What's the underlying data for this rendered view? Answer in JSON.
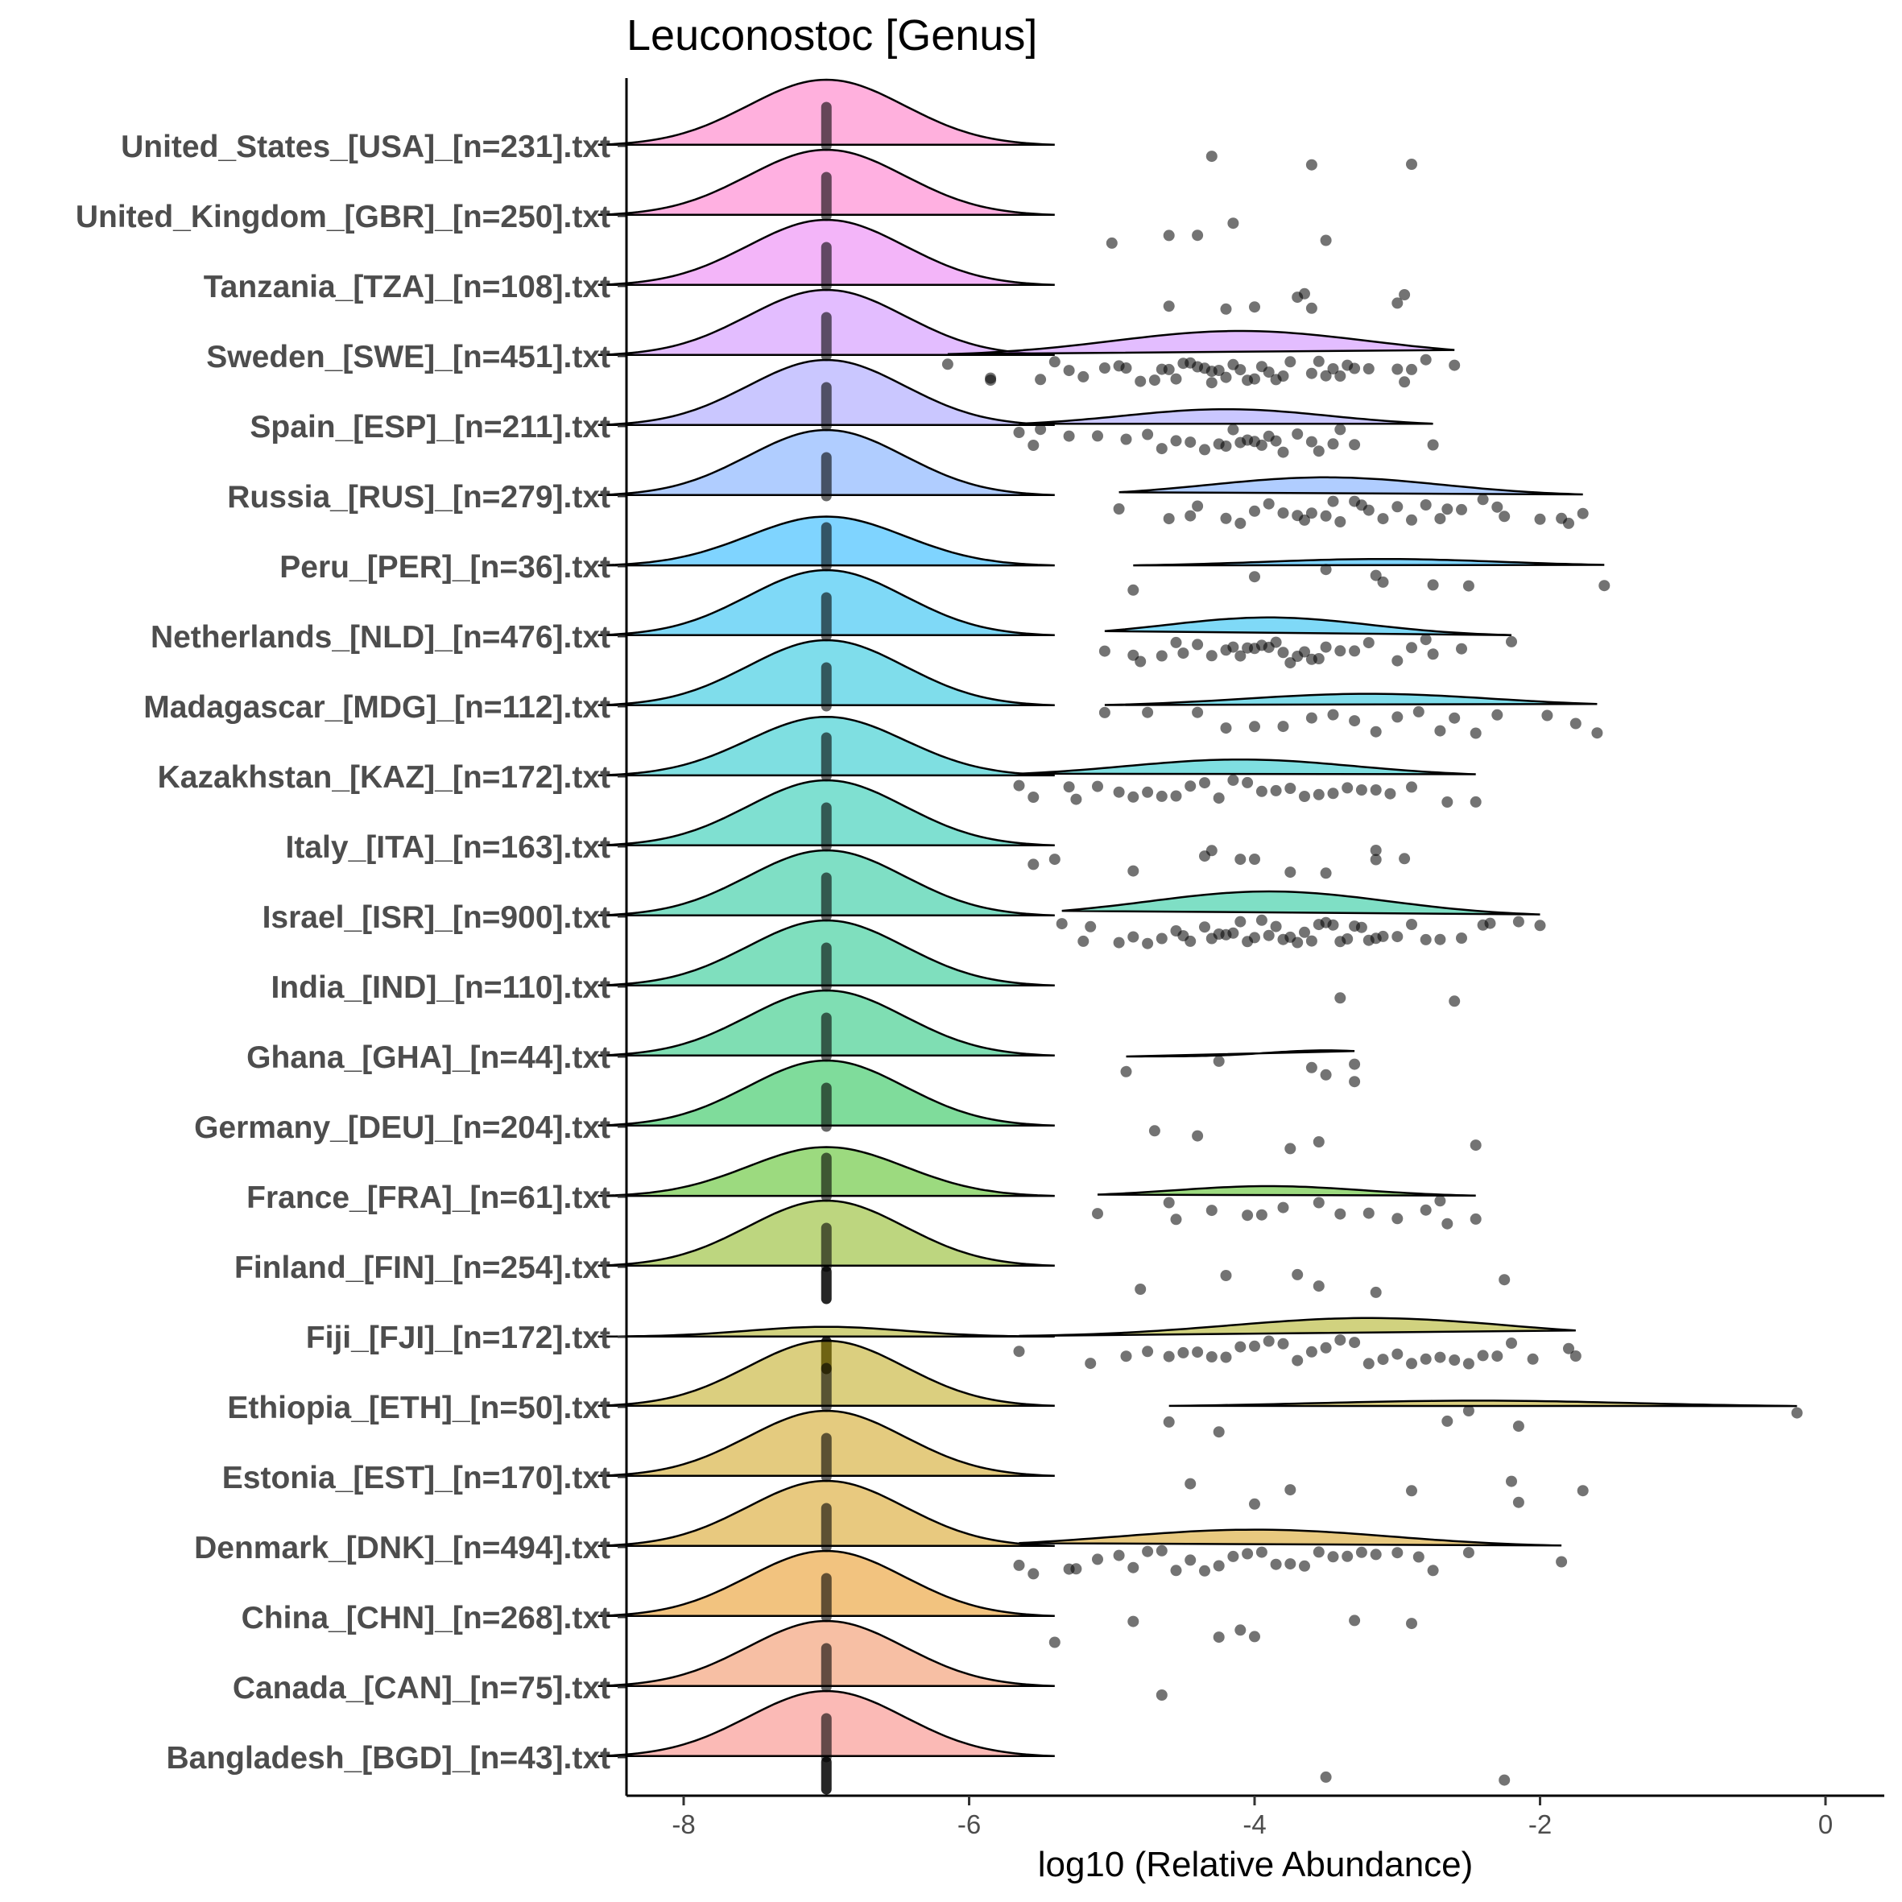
{
  "chart_data": {
    "type": "ridgeline-jitter",
    "title": "Leuconostoc [Genus]",
    "xlabel": "log10 (Relative Abundance)",
    "ylabel": "",
    "xlim": [
      -8.4,
      0.4
    ],
    "xticks": [
      -8,
      -6,
      -4,
      -2,
      0
    ],
    "grid": false,
    "legend": "none",
    "zero_value": -7,
    "categories": [
      {
        "label": "United_States_[USA]_[n=231].txt",
        "color": "#F8766D",
        "peak": -7,
        "zero_peak": 1.0,
        "zero_strip": [
          1,
          0
        ],
        "points": [
          -3.6,
          -4.3,
          -2.9
        ]
      },
      {
        "label": "United_Kingdom_[GBR]_[n=250].txt",
        "color": "#F8766D",
        "peak": -7,
        "zero_peak": 1.0,
        "zero_strip": [
          1,
          0
        ],
        "points": [
          -5.0,
          -4.6,
          -4.4,
          -4.15,
          -3.5
        ]
      },
      {
        "label": "Tanzania_[TZA]_[n=108].txt",
        "color": "#F8766D",
        "peak": -7,
        "zero_peak": 1.0,
        "zero_strip": [
          1,
          0
        ],
        "points": [
          -4.6,
          -4.2,
          -4.0,
          -3.7,
          -3.6,
          -3.65,
          -3.0,
          -2.95
        ]
      },
      {
        "label": "Sweden_[SWE]_[n=451].txt",
        "color": "#F8766D",
        "peak": -4.1,
        "zero_peak": 1.0,
        "zero_strip": [
          1,
          0
        ],
        "points": [
          -6.15,
          -5.85,
          -5.85,
          -5.5,
          -5.4,
          -5.3,
          -5.2,
          -5.05,
          -4.95,
          -4.9,
          -4.8,
          -4.7,
          -4.65,
          -4.6,
          -4.55,
          -4.5,
          -4.45,
          -4.4,
          -4.35,
          -4.3,
          -4.3,
          -4.25,
          -4.2,
          -4.15,
          -4.1,
          -4.05,
          -4.0,
          -3.95,
          -3.9,
          -3.85,
          -3.8,
          -3.75,
          -3.6,
          -3.55,
          -3.5,
          -3.45,
          -3.4,
          -3.35,
          -3.3,
          -3.2,
          -3.0,
          -2.95,
          -2.9,
          -2.8,
          -2.6
        ]
      },
      {
        "label": "Spain_[ESP]_[n=211].txt",
        "color": "#F8766D",
        "peak": -4.2,
        "zero_peak": 1.0,
        "zero_strip": [
          1,
          0
        ],
        "points": [
          -5.65,
          -5.55,
          -5.5,
          -5.3,
          -5.1,
          -4.9,
          -4.75,
          -4.65,
          -4.55,
          -4.45,
          -4.35,
          -4.25,
          -4.2,
          -4.15,
          -4.1,
          -4.05,
          -4.0,
          -3.95,
          -3.9,
          -3.85,
          -3.8,
          -3.7,
          -3.6,
          -3.55,
          -3.45,
          -3.4,
          -3.3,
          -2.75
        ]
      },
      {
        "label": "Russia_[RUS]_[n=279].txt",
        "color": "#F8766D",
        "peak": -3.5,
        "zero_peak": 1.0,
        "zero_strip": [
          1,
          0
        ],
        "points": [
          -4.95,
          -4.6,
          -4.45,
          -4.4,
          -4.2,
          -4.1,
          -4.0,
          -3.9,
          -3.8,
          -3.7,
          -3.65,
          -3.6,
          -3.5,
          -3.45,
          -3.4,
          -3.3,
          -3.25,
          -3.2,
          -3.1,
          -3.0,
          -2.9,
          -2.8,
          -2.7,
          -2.65,
          -2.55,
          -2.4,
          -2.3,
          -2.25,
          -2.0,
          -1.85,
          -1.8,
          -1.7
        ]
      },
      {
        "label": "Peru_[PER]_[n=36].txt",
        "color": "#F8766D",
        "peak": -3.1,
        "zero_peak": 0.75,
        "zero_strip": [
          1,
          0
        ],
        "points": [
          -4.85,
          -4.0,
          -3.5,
          -3.15,
          -3.1,
          -2.75,
          -2.5,
          -1.55
        ]
      },
      {
        "label": "Netherlands_[NLD]_[n=476].txt",
        "color": "#F8766D",
        "peak": -3.9,
        "zero_peak": 1.0,
        "zero_strip": [
          1,
          0
        ],
        "points": [
          -5.05,
          -4.85,
          -4.8,
          -4.65,
          -4.55,
          -4.5,
          -4.4,
          -4.3,
          -4.2,
          -4.15,
          -4.1,
          -4.05,
          -4.0,
          -3.95,
          -3.9,
          -3.85,
          -3.8,
          -3.75,
          -3.7,
          -3.65,
          -3.6,
          -3.55,
          -3.5,
          -3.4,
          -3.3,
          -3.2,
          -3.0,
          -2.9,
          -2.8,
          -2.75,
          -2.55,
          -2.2
        ]
      },
      {
        "label": "Madagascar_[MDG]_[n=112].txt",
        "color": "#F8766D",
        "peak": -3.2,
        "zero_peak": 1.0,
        "zero_strip": [
          1,
          0
        ],
        "points": [
          -5.05,
          -4.75,
          -4.4,
          -4.2,
          -4.0,
          -3.8,
          -3.6,
          -3.45,
          -3.3,
          -3.15,
          -3.0,
          -2.85,
          -2.7,
          -2.6,
          -2.45,
          -2.3,
          -1.95,
          -1.75,
          -1.6
        ]
      },
      {
        "label": "Kazakhstan_[KAZ]_[n=172].txt",
        "color": "#F8766D",
        "peak": -4.1,
        "zero_peak": 0.9,
        "zero_strip": [
          1,
          0
        ],
        "points": [
          -5.65,
          -5.55,
          -5.3,
          -5.25,
          -5.1,
          -4.95,
          -4.85,
          -4.75,
          -4.65,
          -4.55,
          -4.45,
          -4.35,
          -4.25,
          -4.15,
          -4.05,
          -3.95,
          -3.85,
          -3.75,
          -3.65,
          -3.55,
          -3.45,
          -3.35,
          -3.25,
          -3.15,
          -3.05,
          -2.9,
          -2.65,
          -2.45
        ]
      },
      {
        "label": "Italy_[ITA]_[n=163].txt",
        "color": "#F8766D",
        "peak": -7,
        "zero_peak": 1.0,
        "zero_strip": [
          1,
          0
        ],
        "points": [
          -5.55,
          -5.4,
          -4.85,
          -4.35,
          -4.3,
          -4.1,
          -4.0,
          -3.75,
          -3.5,
          -3.15,
          -3.15,
          -2.95
        ]
      },
      {
        "label": "Israel_[ISR]_[n=900].txt",
        "color": "#F8766D",
        "peak": -3.9,
        "zero_peak": 1.0,
        "zero_strip": [
          1,
          0
        ],
        "points": [
          -5.35,
          -5.2,
          -5.15,
          -4.95,
          -4.85,
          -4.75,
          -4.65,
          -4.55,
          -4.5,
          -4.45,
          -4.35,
          -4.3,
          -4.25,
          -4.2,
          -4.15,
          -4.1,
          -4.05,
          -4.0,
          -3.95,
          -3.9,
          -3.85,
          -3.8,
          -3.75,
          -3.7,
          -3.65,
          -3.6,
          -3.55,
          -3.5,
          -3.45,
          -3.4,
          -3.35,
          -3.3,
          -3.25,
          -3.2,
          -3.15,
          -3.1,
          -3.0,
          -2.9,
          -2.8,
          -2.7,
          -2.55,
          -2.4,
          -2.35,
          -2.15,
          -2.0
        ]
      },
      {
        "label": "India_[IND]_[n=110].txt",
        "color": "#F8766D",
        "peak": -7,
        "zero_peak": 1.0,
        "zero_strip": [
          1,
          0
        ],
        "points": [
          -3.4,
          -2.6
        ]
      },
      {
        "label": "Ghana_[GHA]_[n=44].txt",
        "color": "#F8766D",
        "peak": -3.5,
        "zero_peak": 1.0,
        "zero_strip": [
          1,
          0
        ],
        "points": [
          -4.9,
          -4.25,
          -3.6,
          -3.5,
          -3.3,
          -3.3
        ]
      },
      {
        "label": "Germany_[DEU]_[n=204].txt",
        "color": "#F8766D",
        "peak": -7,
        "zero_peak": 1.0,
        "zero_strip": [
          1,
          0
        ],
        "points": [
          -4.7,
          -4.4,
          -3.75,
          -3.55,
          -2.45
        ]
      },
      {
        "label": "France_[FRA]_[n=61].txt",
        "color": "#F8766D",
        "peak": -3.9,
        "zero_peak": 0.75,
        "zero_strip": [
          1,
          0
        ],
        "points": [
          -5.1,
          -4.6,
          -4.55,
          -4.3,
          -4.05,
          -3.95,
          -3.8,
          -3.55,
          -3.4,
          -3.2,
          -3.0,
          -2.8,
          -2.7,
          -2.65,
          -2.45
        ]
      },
      {
        "label": "Finland_[FIN]_[n=254].txt",
        "color": "#F8766D",
        "peak": -7,
        "zero_peak": 1.0,
        "zero_strip": [
          1,
          1
        ],
        "points": [
          -4.8,
          -4.2,
          -3.7,
          -3.55,
          -3.15,
          -2.25
        ]
      },
      {
        "label": "Fiji_[FJI]_[n=172].txt",
        "color": "#F8766D",
        "peak": -3.2,
        "zero_peak": 0.15,
        "zero_strip": [
          0,
          1
        ],
        "points": [
          -5.65,
          -5.15,
          -4.9,
          -4.75,
          -4.6,
          -4.5,
          -4.4,
          -4.3,
          -4.2,
          -4.1,
          -4.0,
          -3.9,
          -3.8,
          -3.7,
          -3.6,
          -3.5,
          -3.4,
          -3.3,
          -3.2,
          -3.1,
          -3.0,
          -2.9,
          -2.8,
          -2.7,
          -2.6,
          -2.5,
          -2.4,
          -2.3,
          -2.2,
          -2.05,
          -1.8,
          -1.75
        ]
      },
      {
        "label": "Ethiopia_[ETH]_[n=50].txt",
        "color": "#F8766D",
        "peak": -2.45,
        "zero_peak": 1.0,
        "zero_strip": [
          1,
          0
        ],
        "points": [
          -4.6,
          -4.25,
          -2.65,
          -2.5,
          -2.15,
          -0.2
        ]
      },
      {
        "label": "Estonia_[EST]_[n=170].txt",
        "color": "#F8766D",
        "peak": -7,
        "zero_peak": 1.0,
        "zero_strip": [
          1,
          0
        ],
        "points": [
          -4.45,
          -4.0,
          -3.75,
          -2.9,
          -2.2,
          -2.15,
          -1.7
        ]
      },
      {
        "label": "Denmark_[DNK]_[n=494].txt",
        "color": "#F8766D",
        "peak": -4.0,
        "zero_peak": 1.0,
        "zero_strip": [
          1,
          0
        ],
        "points": [
          -5.65,
          -5.55,
          -5.3,
          -5.25,
          -5.1,
          -4.95,
          -4.85,
          -4.75,
          -4.65,
          -4.55,
          -4.45,
          -4.35,
          -4.25,
          -4.15,
          -4.05,
          -3.95,
          -3.85,
          -3.75,
          -3.65,
          -3.55,
          -3.45,
          -3.35,
          -3.25,
          -3.15,
          -3.0,
          -2.85,
          -2.75,
          -2.5,
          -1.85
        ]
      },
      {
        "label": "China_[CHN]_[n=268].txt",
        "color": "#F8766D",
        "peak": -7,
        "zero_peak": 1.0,
        "zero_strip": [
          1,
          0
        ],
        "points": [
          -5.4,
          -4.85,
          -4.25,
          -4.0,
          -4.1,
          -3.3,
          -2.9
        ]
      },
      {
        "label": "Canada_[CAN]_[n=75].txt",
        "color": "#F8766D",
        "peak": -7,
        "zero_peak": 1.0,
        "zero_strip": [
          1,
          0
        ],
        "points": [
          -4.65
        ]
      },
      {
        "label": "Bangladesh_[BGD]_[n=43].txt",
        "color": "#F8766D",
        "peak": -7,
        "zero_peak": 1.0,
        "zero_strip": [
          1,
          1
        ],
        "points": [
          -3.5,
          -2.25
        ]
      }
    ]
  }
}
